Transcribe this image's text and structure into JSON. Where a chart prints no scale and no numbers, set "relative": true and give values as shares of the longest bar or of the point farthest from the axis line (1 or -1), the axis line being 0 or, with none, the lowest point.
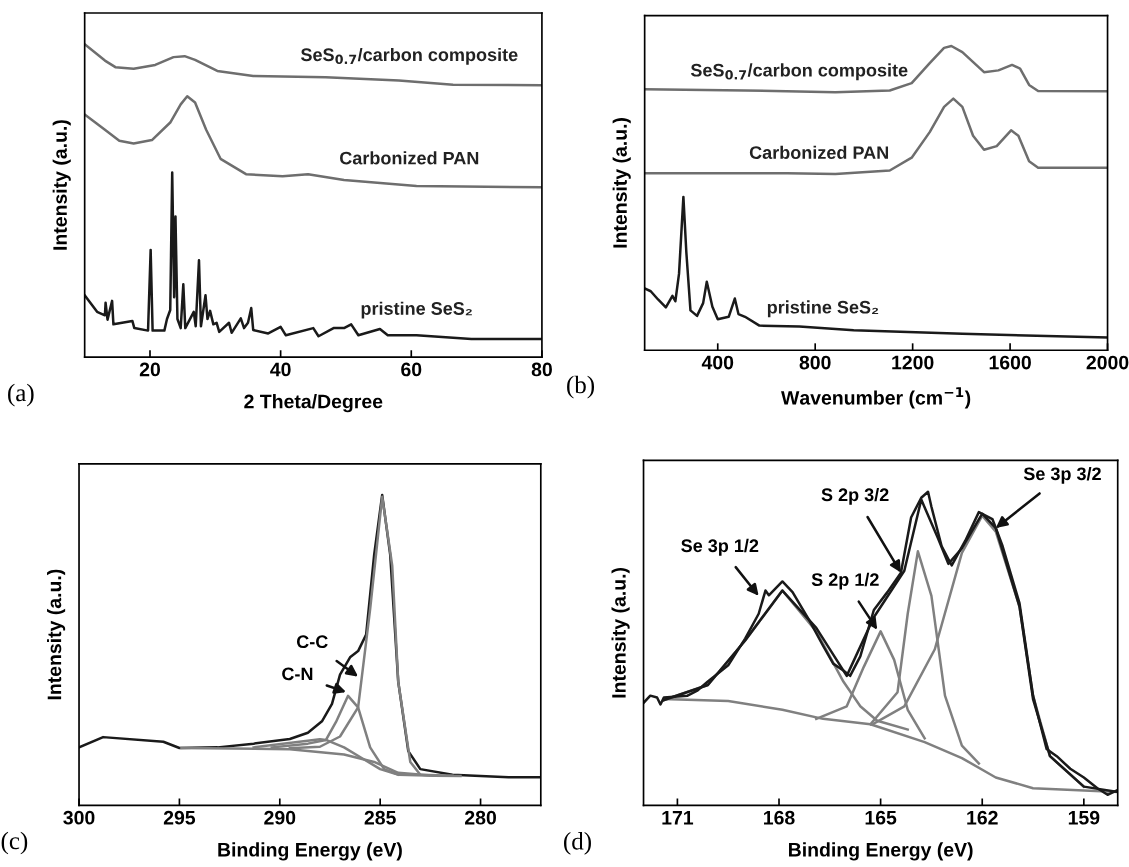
{
  "chart_data": [
    {
      "type": "line",
      "xlabel": "2 Theta/Degree",
      "ylabel": "Intensity (a.u.)",
      "xlim": [
        10,
        80
      ],
      "xticks": [
        20,
        40,
        60,
        80
      ],
      "relative": true,
      "tick_labels": "x",
      "annotations": [
        "(a)"
      ],
      "series": [
        {
          "name": "SeS$_{0.7}$/carbon composite",
          "color": "#6e6e6e",
          "x": [
            10,
            13.1,
            14.7,
            17.5,
            20.8,
            23.6,
            25.3,
            26.9,
            30.3,
            35.8,
            46.9,
            58.1,
            66.4,
            80
          ],
          "values": [
            1.0,
            0.948,
            0.927,
            0.922,
            0.934,
            0.959,
            0.962,
            0.95,
            0.915,
            0.899,
            0.895,
            0.884,
            0.871,
            0.869
          ]
        },
        {
          "name": "Carbonized PAN",
          "color": "#6e6e6e",
          "x": [
            10,
            13.1,
            15.3,
            17.5,
            20.3,
            23.1,
            24.7,
            25.7,
            26.9,
            28.6,
            30.8,
            34.7,
            40.3,
            44.2,
            49.7,
            60.8,
            80
          ],
          "values": [
            0.776,
            0.727,
            0.692,
            0.683,
            0.694,
            0.75,
            0.808,
            0.834,
            0.814,
            0.727,
            0.634,
            0.585,
            0.578,
            0.585,
            0.566,
            0.547,
            0.543
          ]
        },
        {
          "name": "pristine SeS₂",
          "color": "#1a1a1a",
          "x": [
            10,
            11.9,
            13.1,
            13.2,
            13.5,
            14.2,
            14.4,
            17.3,
            17.6,
            19.7,
            20.1,
            20.4,
            22.2,
            22.6,
            23.1,
            23.4,
            23.7,
            23.9,
            24.2,
            24.7,
            25.1,
            25.4,
            26.7,
            27.0,
            27.5,
            27.8,
            28.5,
            28.8,
            29.2,
            29.7,
            30.2,
            30.6,
            32.1,
            32.5,
            33.9,
            34.4,
            35.0,
            35.5,
            35.8,
            38.1,
            40.0,
            40.8,
            45.0,
            45.8,
            48.1,
            49.7,
            50.8,
            51.9,
            55.2,
            56.4,
            60.8,
            69.2,
            80
          ],
          "values": [
            0.198,
            0.145,
            0.134,
            0.174,
            0.12,
            0.18,
            0.105,
            0.116,
            0.093,
            0.085,
            0.343,
            0.085,
            0.085,
            0.122,
            0.151,
            0.59,
            0.192,
            0.45,
            0.122,
            0.093,
            0.233,
            0.093,
            0.145,
            0.099,
            0.31,
            0.099,
            0.198,
            0.122,
            0.148,
            0.105,
            0.11,
            0.081,
            0.11,
            0.078,
            0.124,
            0.093,
            0.11,
            0.157,
            0.087,
            0.076,
            0.097,
            0.07,
            0.093,
            0.067,
            0.093,
            0.093,
            0.105,
            0.07,
            0.09,
            0.07,
            0.07,
            0.058,
            0.058
          ]
        }
      ]
    },
    {
      "type": "line",
      "xlabel": "Wavenumber (cm$^{−1}$)",
      "ylabel": "Intensity (a.u.)",
      "xlim": [
        100,
        2000
      ],
      "xticks": [
        400,
        800,
        1200,
        1600,
        2000
      ],
      "relative": true,
      "tick_labels": "x",
      "annotations": [
        "(b)"
      ],
      "series": [
        {
          "name": "SeS$_{0.7}$/carbon composite",
          "color": "#6e6e6e",
          "x": [
            100,
            512,
            883,
            1106,
            1196,
            1270,
            1329,
            1359,
            1404,
            1493,
            1552,
            1608,
            1641,
            1678,
            1715,
            2000
          ],
          "values": [
            0.858,
            0.854,
            0.848,
            0.854,
            0.878,
            0.944,
            0.994,
            1.0,
            0.98,
            0.914,
            0.92,
            0.938,
            0.926,
            0.872,
            0.852,
            0.851
          ]
        },
        {
          "name": "Carbonized PAN",
          "color": "#6e6e6e",
          "x": [
            100,
            685,
            883,
            1106,
            1196,
            1270,
            1329,
            1367,
            1404,
            1448,
            1493,
            1545,
            1604,
            1634,
            1678,
            1715,
            2000
          ],
          "values": [
            0.582,
            0.582,
            0.579,
            0.591,
            0.633,
            0.717,
            0.8,
            0.827,
            0.8,
            0.705,
            0.659,
            0.671,
            0.723,
            0.705,
            0.621,
            0.6,
            0.6
          ]
        },
        {
          "name": "pristine SeS₂",
          "color": "#1a1a1a",
          "x": [
            100,
            125,
            155,
            187,
            214,
            226,
            241,
            259,
            271,
            288,
            315,
            340,
            355,
            378,
            400,
            445,
            470,
            485,
            512,
            571,
            735,
            958,
            1404,
            2000
          ],
          "values": [
            0.203,
            0.194,
            0.167,
            0.141,
            0.179,
            0.161,
            0.251,
            0.504,
            0.323,
            0.131,
            0.113,
            0.155,
            0.225,
            0.143,
            0.102,
            0.11,
            0.17,
            0.119,
            0.11,
            0.081,
            0.078,
            0.066,
            0.054,
            0.042
          ]
        }
      ]
    },
    {
      "type": "line",
      "xlabel": "Binding Energy (eV)",
      "ylabel": "Intensity (a.u.)",
      "xlim": [
        300,
        277
      ],
      "xticks": [
        300,
        295,
        290,
        285,
        280
      ],
      "relative": true,
      "tick_labels": "x",
      "annotations": [
        "(c)",
        {
          "text": "C-C",
          "x": 286.1,
          "y": 0.415
        },
        {
          "text": "C-N",
          "x": 286.7,
          "y": 0.365
        }
      ],
      "series": [
        {
          "color": "#1a1a1a",
          "x": [
            300,
            298.8,
            295.8,
            295.0,
            293.1,
            291.3,
            289.5,
            288.6,
            287.9,
            287.4,
            287.0,
            286.5,
            286.1,
            285.7,
            285.3,
            284.9,
            284.5,
            284.1,
            283.6,
            283.0,
            281.4,
            278.6,
            277
          ],
          "values": [
            0.187,
            0.22,
            0.205,
            0.185,
            0.187,
            0.199,
            0.214,
            0.234,
            0.271,
            0.327,
            0.421,
            0.477,
            0.497,
            0.55,
            0.807,
            1.0,
            0.807,
            0.398,
            0.175,
            0.117,
            0.099,
            0.091,
            0.091
          ]
        },
        {
          "color": "#808080",
          "x": [
            294.9,
            289.5,
            286.8,
            285.3,
            284.1,
            282.3,
            281.0
          ],
          "values": [
            0.185,
            0.181,
            0.164,
            0.14,
            0.105,
            0.096,
            0.095
          ]
        },
        {
          "color": "#808080",
          "x": [
            289.5,
            288.0,
            287.0,
            286.1,
            285.5,
            284.9,
            284.4,
            284.1,
            283.5,
            283.0,
            281.4
          ],
          "values": [
            0.184,
            0.189,
            0.222,
            0.316,
            0.632,
            0.994,
            0.772,
            0.398,
            0.14,
            0.099,
            0.096
          ]
        },
        {
          "color": "#808080",
          "x": [
            290.4,
            288.6,
            287.7,
            287.2,
            286.6,
            286.1,
            285.5,
            284.8,
            284.1,
            282.3
          ],
          "values": [
            0.187,
            0.199,
            0.211,
            0.269,
            0.353,
            0.316,
            0.187,
            0.117,
            0.099,
            0.096
          ]
        },
        {
          "color": "#808080",
          "x": [
            291.3,
            288.0,
            287.7,
            286.8,
            285.9,
            285.0,
            284.1
          ],
          "values": [
            0.187,
            0.213,
            0.211,
            0.187,
            0.152,
            0.117,
            0.099
          ]
        }
      ]
    },
    {
      "type": "line",
      "xlabel": "Binding Energy (eV)",
      "ylabel": "Intensity (a.u.)",
      "xlim": [
        172,
        158
      ],
      "xticks": [
        171,
        168,
        165,
        162,
        159
      ],
      "relative": true,
      "tick_labels": "x",
      "annotations": [
        "(d)",
        {
          "text": "Se 3p 1/2",
          "x": 168.6,
          "y": 0.668
        },
        {
          "text": "S 2p 1/2",
          "x": 165.1,
          "y": 0.56
        },
        {
          "text": "S 2p 3/2",
          "x": 164.4,
          "y": 0.742
        },
        {
          "text": "Se 3p 3/2",
          "x": 161.6,
          "y": 0.884
        }
      ],
      "series": [
        {
          "color": "#808080",
          "x": [
            171.4,
            169.5,
            167.9,
            166.7,
            165.3,
            163.7,
            162.6,
            161.6,
            160.5,
            158.0
          ],
          "values": [
            0.339,
            0.333,
            0.305,
            0.276,
            0.259,
            0.202,
            0.151,
            0.089,
            0.055,
            0.043
          ]
        },
        {
          "color": "#808080",
          "x": [
            171.4,
            170.1,
            169.0,
            167.9,
            166.9,
            166.1,
            165.6,
            165.1,
            164.2
          ],
          "values": [
            0.336,
            0.384,
            0.526,
            0.685,
            0.555,
            0.395,
            0.316,
            0.27,
            0.242
          ]
        },
        {
          "color": "#808080",
          "x": [
            166.9,
            166.0,
            165.5,
            165.0,
            164.6,
            164.2,
            163.7
          ],
          "values": [
            0.276,
            0.316,
            0.441,
            0.555,
            0.464,
            0.305,
            0.214
          ]
        },
        {
          "color": "#808080",
          "x": [
            165.3,
            164.5,
            164.2,
            163.9,
            163.5,
            163.1,
            162.6,
            162.1
          ],
          "values": [
            0.259,
            0.361,
            0.611,
            0.81,
            0.668,
            0.35,
            0.191,
            0.134
          ]
        },
        {
          "color": "#808080",
          "x": [
            165.2,
            164.3,
            163.4,
            162.6,
            162.0,
            161.6,
            160.9,
            160.5,
            160.0,
            159.0
          ],
          "values": [
            0.261,
            0.316,
            0.498,
            0.805,
            0.924,
            0.873,
            0.634,
            0.35,
            0.157,
            0.06
          ]
        },
        {
          "color": "#1a1a1a",
          "x": [
            171.4,
            170.1,
            169.0,
            167.9,
            166.9,
            166.0,
            165.2,
            164.3,
            163.8,
            163.3,
            163.0,
            162.6,
            162.0,
            161.6,
            160.9,
            160.5,
            160.0,
            159.0,
            158.0
          ],
          "values": [
            0.336,
            0.384,
            0.526,
            0.685,
            0.566,
            0.413,
            0.6,
            0.748,
            0.975,
            0.85,
            0.77,
            0.82,
            0.93,
            0.884,
            0.634,
            0.339,
            0.157,
            0.06,
            0.043
          ]
        },
        {
          "color": "#1a1a1a",
          "x": [
            172.0,
            171.8,
            171.6,
            171.5,
            171.4,
            170.7,
            170.4,
            170.1,
            169.5,
            169.0,
            168.6,
            168.4,
            168.3,
            167.9,
            167.6,
            167.1,
            166.7,
            166.4,
            166.1,
            165.9,
            165.6,
            165.2,
            164.8,
            164.4,
            164.1,
            163.8,
            163.6,
            163.5,
            163.2,
            162.9,
            162.5,
            162.1,
            161.7,
            161.4,
            160.9,
            160.5,
            160.1,
            159.8,
            159.4,
            159.0,
            158.6,
            158.3,
            158.0
          ],
          "values": [
            0.327,
            0.35,
            0.344,
            0.322,
            0.344,
            0.35,
            0.367,
            0.395,
            0.447,
            0.532,
            0.611,
            0.685,
            0.67,
            0.714,
            0.68,
            0.589,
            0.509,
            0.452,
            0.43,
            0.413,
            0.475,
            0.623,
            0.68,
            0.742,
            0.918,
            0.981,
            1.0,
            0.952,
            0.827,
            0.765,
            0.844,
            0.935,
            0.913,
            0.827,
            0.645,
            0.35,
            0.18,
            0.157,
            0.117,
            0.089,
            0.055,
            0.034,
            0.049
          ]
        }
      ]
    }
  ]
}
